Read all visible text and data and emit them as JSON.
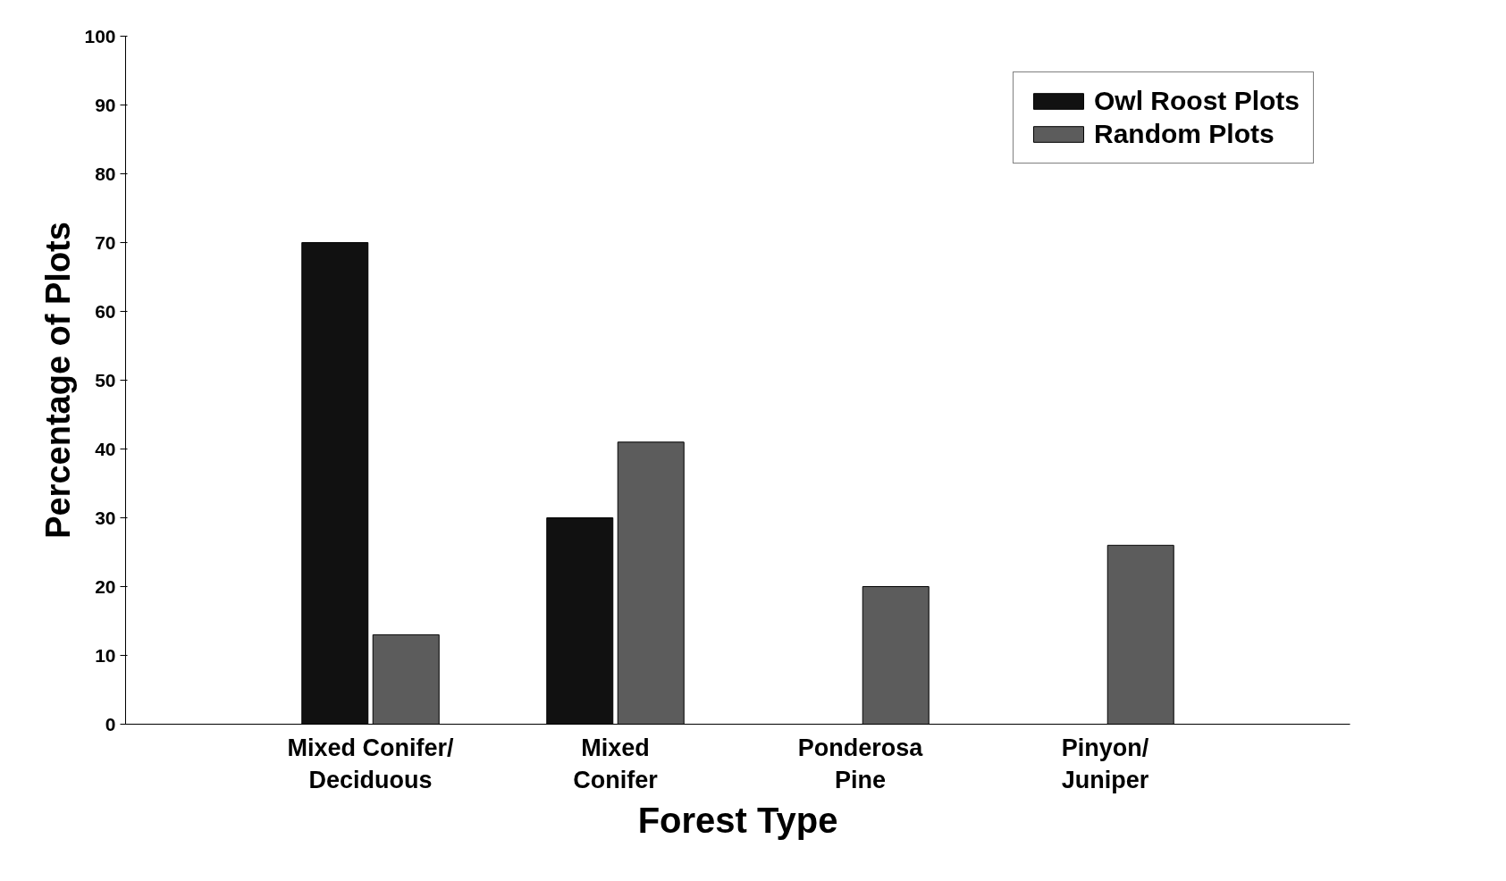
{
  "chart_data": {
    "type": "bar",
    "xlabel": "Forest Type",
    "ylabel": "Percentage of Plots",
    "categories": [
      "Mixed Conifer/\nDeciduous",
      "Mixed\nConifer",
      "Ponderosa\nPine",
      "Pinyon/\nJuniper"
    ],
    "series": [
      {
        "name": "Owl Roost Plots",
        "color": "#111111",
        "values": [
          70,
          30,
          null,
          null
        ]
      },
      {
        "name": "Random Plots",
        "color": "#5c5c5c",
        "values": [
          13,
          41,
          20,
          26
        ]
      }
    ],
    "ylim": [
      0,
      100
    ],
    "yticks": [
      0,
      10,
      20,
      30,
      40,
      50,
      60,
      70,
      80,
      90,
      100
    ],
    "grid": false,
    "legend": "top right"
  }
}
